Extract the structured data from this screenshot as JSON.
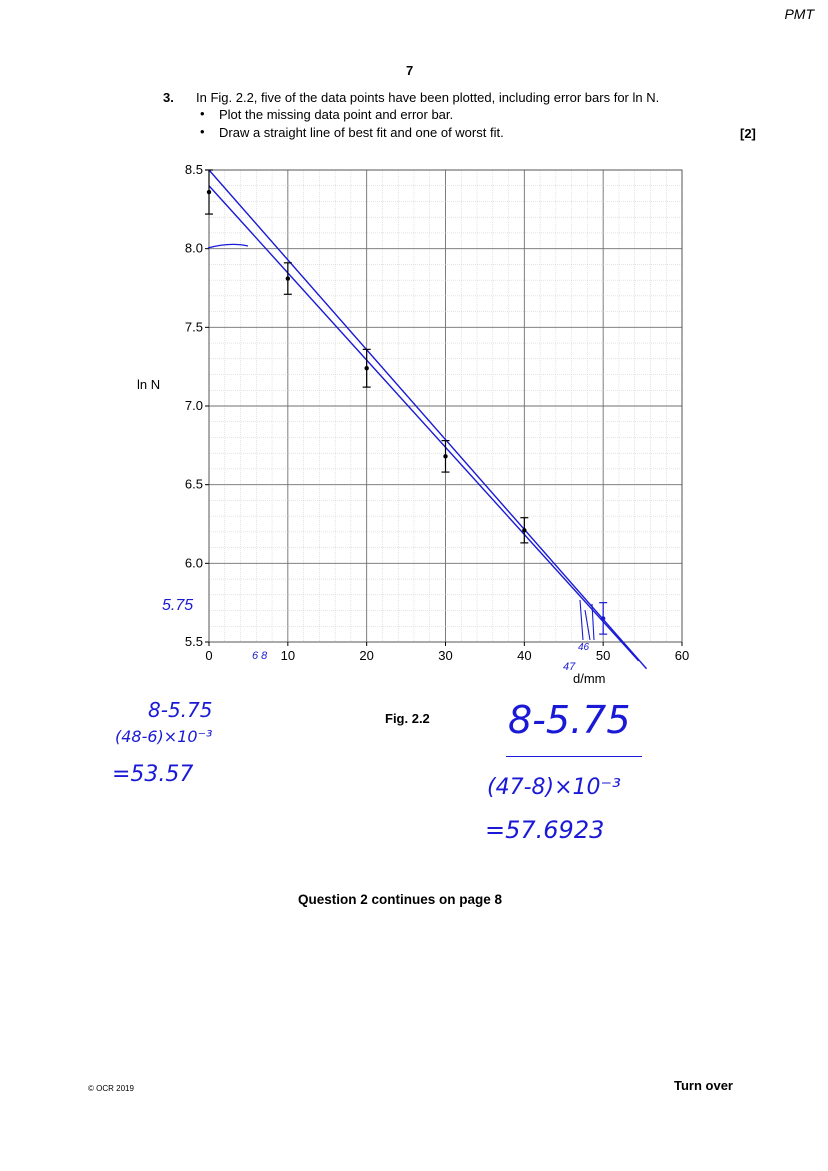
{
  "header": {
    "watermark": "PMT",
    "page_number": "7"
  },
  "question": {
    "number": "3.",
    "intro": "In Fig. 2.2, five of the data points have been plotted, including error bars for ln N.",
    "bullets": [
      "Plot the missing data point and error bar.",
      "Draw a straight line of best fit and one of worst fit."
    ],
    "bullet_symbol": "•",
    "marks": "[2]"
  },
  "figure": {
    "caption": "Fig. 2.2",
    "ylabel": "ln N",
    "xlabel": "d/mm"
  },
  "chart_data": {
    "type": "scatter",
    "x_ticks": [
      "0",
      "10",
      "20",
      "30",
      "40",
      "50",
      "60"
    ],
    "y_ticks": [
      "5.5",
      "6.0",
      "6.5",
      "7.0",
      "7.5",
      "8.0",
      "8.5"
    ],
    "xlim": [
      0,
      60
    ],
    "ylim": [
      5.5,
      8.5
    ],
    "grid": true,
    "points": [
      {
        "x": 0,
        "y": 8.36,
        "err": 0.14
      },
      {
        "x": 10,
        "y": 7.81,
        "err": 0.1
      },
      {
        "x": 20,
        "y": 7.24,
        "err": 0.12
      },
      {
        "x": 30,
        "y": 6.68,
        "err": 0.1
      },
      {
        "x": 40,
        "y": 6.21,
        "err": 0.08
      },
      {
        "x": 50,
        "y": 5.65,
        "err": 0.1
      }
    ],
    "lines": [
      {
        "x1": 0,
        "y1": 8.5,
        "x2": 55.5,
        "y2": 5.33
      },
      {
        "x1": 0,
        "y1": 8.4,
        "x2": 54.5,
        "y2": 5.38
      }
    ],
    "colors": {
      "data": "#000000",
      "handwriting": "#1a1ad6",
      "grid_minor": "#c9c9c9",
      "grid_major": "#6f6f6f"
    }
  },
  "annotations": {
    "axis_mark_575": "5.75",
    "ticks_6_8": "6 8",
    "ticks_46_47": "46",
    "tick_47": "47",
    "calc1_numerator": "8-5.75",
    "calc1_denominator": "(48-6)×10⁻³",
    "calc1_result": "=53.57",
    "calc2_numerator": "8-5.75",
    "calc2_denominator": "(47-8)×10⁻³",
    "calc2_result": "=57.6923"
  },
  "footer": {
    "continues": "Question 2 continues on page 8",
    "copyright": "© OCR 2019",
    "turn_over": "Turn over"
  }
}
